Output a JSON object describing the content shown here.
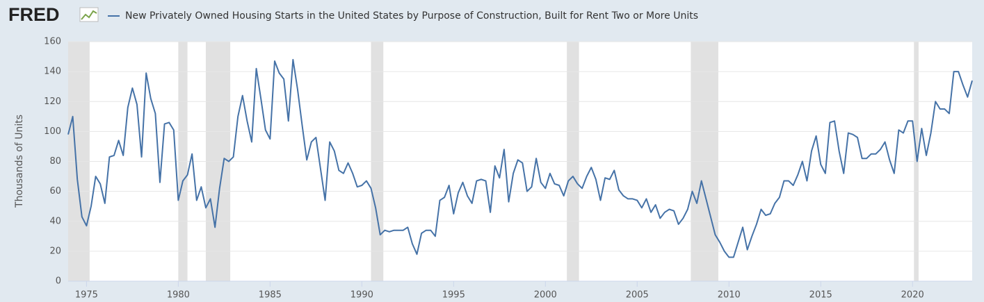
{
  "brand": "FRED",
  "chart_data": {
    "type": "line",
    "y_label": "Thousands of Units",
    "x": [
      1974,
      1974.25,
      1974.5,
      1974.75,
      1975,
      1975.25,
      1975.5,
      1975.75,
      1976,
      1976.25,
      1976.5,
      1976.75,
      1977,
      1977.25,
      1977.5,
      1977.75,
      1978,
      1978.25,
      1978.5,
      1978.75,
      1979,
      1979.25,
      1979.5,
      1979.75,
      1980,
      1980.25,
      1980.5,
      1980.75,
      1981,
      1981.25,
      1981.5,
      1981.75,
      1982,
      1982.25,
      1982.5,
      1982.75,
      1983,
      1983.25,
      1983.5,
      1983.75,
      1984,
      1984.25,
      1984.5,
      1984.75,
      1985,
      1985.25,
      1985.5,
      1985.75,
      1986,
      1986.25,
      1986.5,
      1986.75,
      1987,
      1987.25,
      1987.5,
      1987.75,
      1988,
      1988.25,
      1988.5,
      1988.75,
      1989,
      1989.25,
      1989.5,
      1989.75,
      1990,
      1990.25,
      1990.5,
      1990.75,
      1991,
      1991.25,
      1991.5,
      1991.75,
      1992,
      1992.25,
      1992.5,
      1992.75,
      1993,
      1993.25,
      1993.5,
      1993.75,
      1994,
      1994.25,
      1994.5,
      1994.75,
      1995,
      1995.25,
      1995.5,
      1995.75,
      1996,
      1996.25,
      1996.5,
      1996.75,
      1997,
      1997.25,
      1997.5,
      1997.75,
      1998,
      1998.25,
      1998.5,
      1998.75,
      1999,
      1999.25,
      1999.5,
      1999.75,
      2000,
      2000.25,
      2000.5,
      2000.75,
      2001,
      2001.25,
      2001.5,
      2001.75,
      2002,
      2002.25,
      2002.5,
      2002.75,
      2003,
      2003.25,
      2003.5,
      2003.75,
      2004,
      2004.25,
      2004.5,
      2004.75,
      2005,
      2005.25,
      2005.5,
      2005.75,
      2006,
      2006.25,
      2006.5,
      2006.75,
      2007,
      2007.25,
      2007.5,
      2007.75,
      2008,
      2008.25,
      2008.5,
      2008.75,
      2009,
      2009.25,
      2009.5,
      2009.75,
      2010,
      2010.25,
      2010.5,
      2010.75,
      2011,
      2011.25,
      2011.5,
      2011.75,
      2012,
      2012.25,
      2012.5,
      2012.75,
      2013,
      2013.25,
      2013.5,
      2013.75,
      2014,
      2014.25,
      2014.5,
      2014.75,
      2015,
      2015.25,
      2015.5,
      2015.75,
      2016,
      2016.25,
      2016.5,
      2016.75,
      2017,
      2017.25,
      2017.5,
      2017.75,
      2018,
      2018.25,
      2018.5,
      2018.75,
      2019,
      2019.25,
      2019.5,
      2019.75,
      2020,
      2020.25,
      2020.5,
      2020.75,
      2021,
      2021.25,
      2021.5,
      2021.75,
      2022,
      2022.25,
      2022.5,
      2022.75,
      2023,
      2023.25
    ],
    "series": [
      {
        "name": "New Privately Owned Housing Starts in the United States by Purpose of Construction, Built for Rent Two or More Units",
        "color": "#4572a7",
        "values": [
          98,
          110,
          68,
          43,
          37,
          50,
          70,
          65,
          52,
          83,
          84,
          94,
          84,
          116,
          129,
          118,
          83,
          139,
          122,
          112,
          66,
          105,
          106,
          101,
          54,
          67,
          71,
          85,
          54,
          63,
          49,
          55,
          36,
          62,
          82,
          80,
          83,
          110,
          124,
          107,
          93,
          142,
          122,
          101,
          95,
          147,
          139,
          135,
          107,
          148,
          128,
          104,
          81,
          93,
          96,
          75,
          54,
          93,
          87,
          74,
          72,
          79,
          72,
          63,
          64,
          67,
          62,
          49,
          31,
          34,
          33,
          34,
          34,
          34,
          36,
          25,
          18,
          32,
          34,
          34,
          30,
          54,
          56,
          64,
          45,
          59,
          66,
          57,
          52,
          67,
          68,
          67,
          46,
          77,
          69,
          88,
          53,
          72,
          81,
          79,
          60,
          63,
          82,
          66,
          62,
          72,
          65,
          64,
          57,
          67,
          70,
          65,
          62,
          70,
          76,
          68,
          54,
          69,
          68,
          74,
          61,
          57,
          55,
          55,
          54,
          49,
          55,
          46,
          51,
          42,
          46,
          48,
          47,
          38,
          42,
          48,
          60,
          52,
          67,
          55,
          43,
          31,
          26,
          20,
          16,
          16,
          26,
          36,
          21,
          30,
          38,
          48,
          44,
          45,
          52,
          56,
          67,
          67,
          64,
          71,
          80,
          67,
          87,
          97,
          78,
          72,
          106,
          107,
          87,
          72,
          99,
          98,
          96,
          82,
          82,
          85,
          85,
          88,
          93,
          81,
          72,
          101,
          99,
          107,
          107,
          80,
          102,
          84,
          99,
          120,
          115,
          115,
          112,
          140,
          140,
          131,
          123,
          134
        ]
      }
    ],
    "recessions": [
      [
        1974,
        1975.17
      ],
      [
        1980,
        1980.5
      ],
      [
        1981.5,
        1982.83
      ],
      [
        1990.5,
        1991.17
      ],
      [
        2001.17,
        2001.83
      ],
      [
        2007.92,
        2009.42
      ],
      [
        2020.08,
        2020.33
      ]
    ],
    "recession_color": "#e1e1e1",
    "xlim": [
      1974,
      2023.25
    ],
    "xticks": [
      1975,
      1980,
      1985,
      1990,
      1995,
      2000,
      2005,
      2010,
      2015,
      2020
    ],
    "ylim": [
      0,
      160
    ],
    "yticks": [
      0,
      20,
      40,
      60,
      80,
      100,
      120,
      140,
      160
    ],
    "grid": true
  }
}
